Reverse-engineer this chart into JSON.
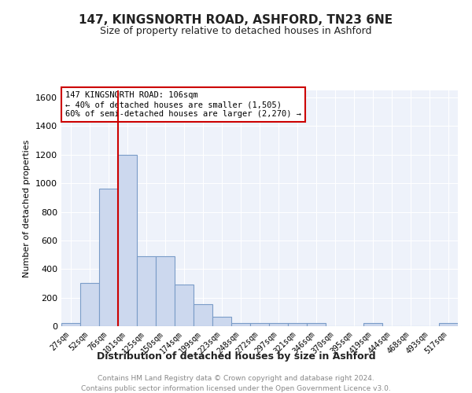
{
  "title": "147, KINGSNORTH ROAD, ASHFORD, TN23 6NE",
  "subtitle": "Size of property relative to detached houses in Ashford",
  "xlabel": "Distribution of detached houses by size in Ashford",
  "ylabel": "Number of detached properties",
  "categories": [
    "27sqm",
    "52sqm",
    "76sqm",
    "101sqm",
    "125sqm",
    "150sqm",
    "174sqm",
    "199sqm",
    "223sqm",
    "248sqm",
    "272sqm",
    "297sqm",
    "321sqm",
    "346sqm",
    "370sqm",
    "395sqm",
    "419sqm",
    "444sqm",
    "468sqm",
    "493sqm",
    "517sqm"
  ],
  "values": [
    20,
    305,
    960,
    1200,
    490,
    490,
    290,
    155,
    65,
    20,
    20,
    20,
    20,
    20,
    0,
    0,
    20,
    0,
    0,
    0,
    20
  ],
  "bar_color": "#ccd8ee",
  "bar_edgecolor": "#7a9cc8",
  "annotation_lines": [
    "147 KINGSNORTH ROAD: 106sqm",
    "← 40% of detached houses are smaller (1,505)",
    "60% of semi-detached houses are larger (2,270) →"
  ],
  "annotation_box_color": "#ffffff",
  "annotation_box_edgecolor": "#cc0000",
  "redline_index": 3,
  "ylim": [
    0,
    1650
  ],
  "yticks": [
    0,
    200,
    400,
    600,
    800,
    1000,
    1200,
    1400,
    1600
  ],
  "background_color": "#eef2fa",
  "grid_color": "#ffffff",
  "footer_line1": "Contains HM Land Registry data © Crown copyright and database right 2024.",
  "footer_line2": "Contains public sector information licensed under the Open Government Licence v3.0."
}
